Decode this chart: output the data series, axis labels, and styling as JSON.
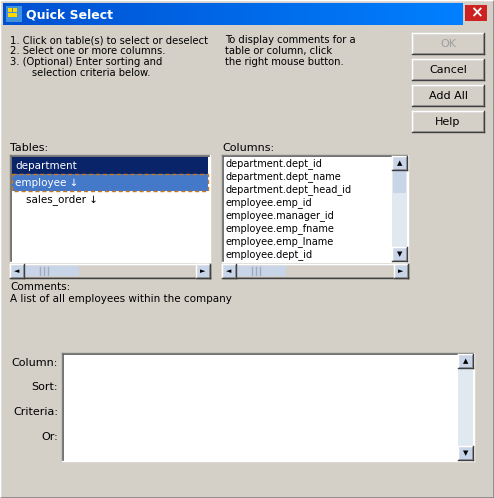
{
  "title": "Quick Select",
  "title_bg_left": "#0050d0",
  "title_bg_right": "#0080ff",
  "title_text_color": "#ffffff",
  "dialog_bg": "#d4d0c8",
  "instructions_left": [
    "1. Click on table(s) to select or deselect",
    "2. Select one or more columns.",
    "3. (Optional) Enter sorting and",
    "       selection criteria below."
  ],
  "instructions_right": "To display comments for a\ntable or column, click\nthe right mouse button.",
  "tables_label": "Tables:",
  "columns_label": "Columns:",
  "comments_label": "Comments:",
  "comments_text": "A list of all employees within the company",
  "table_items": [
    {
      "text": "department",
      "indent": 0,
      "selected": true,
      "active": false
    },
    {
      "text": "employee",
      "indent": 0,
      "selected": true,
      "active": true,
      "arrow": true
    },
    {
      "text": "sales_order",
      "indent": 1,
      "selected": false,
      "active": false,
      "arrow": true
    }
  ],
  "column_items": [
    "department.dept_id",
    "department.dept_name",
    "department.dept_head_id",
    "employee.emp_id",
    "employee.manager_id",
    "employee.emp_fname",
    "employee.emp_lname",
    "employee.dept_id"
  ],
  "buttons": [
    "OK",
    "Cancel",
    "Add All",
    "Help"
  ],
  "ok_disabled": true,
  "row_labels": [
    "Column:",
    "Sort:",
    "Criteria:",
    "Or:"
  ],
  "white": "#ffffff",
  "dark_blue_sel": "#0a246a",
  "mid_blue_sel": "#4478c8",
  "scroll_btn_bg": "#c8d4e8",
  "scroll_track": "#e0e8f0",
  "btn_bg": "#d4d0c8",
  "border_dark": "#808080",
  "border_light": "#ffffff",
  "border_darker": "#404040"
}
